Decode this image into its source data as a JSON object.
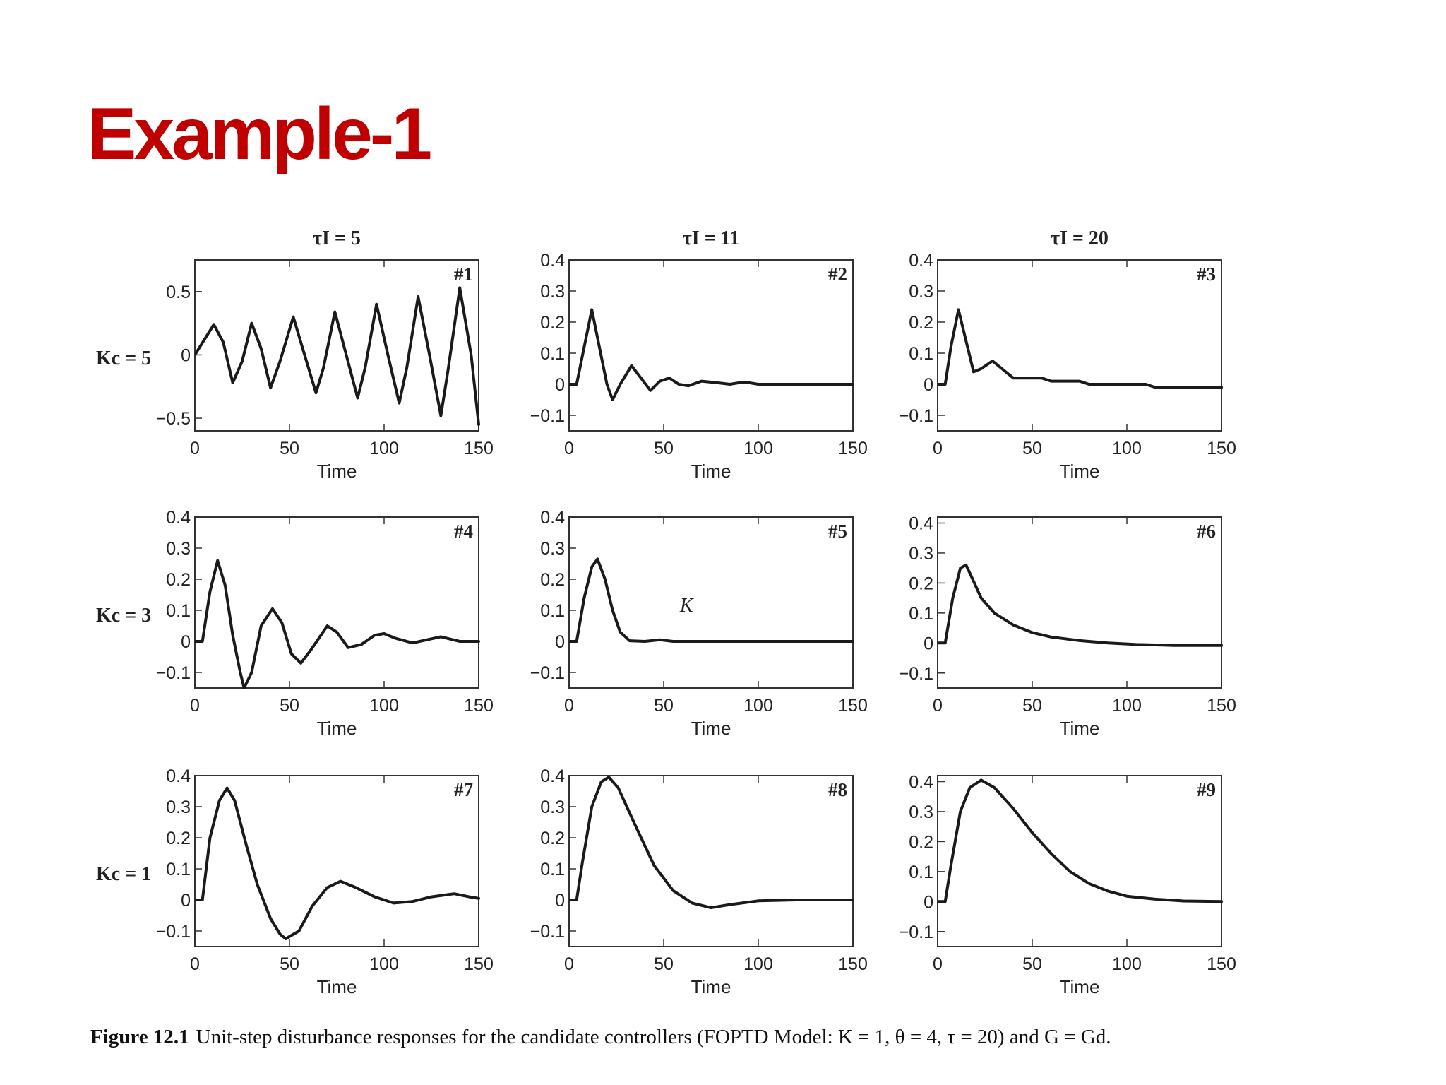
{
  "title": "Example-1",
  "colors": {
    "title": "#c00000",
    "curve": "#1a1a1a",
    "frame": "#333333"
  },
  "caption": {
    "label": "Figure 12.1",
    "text": "Unit-step disturbance responses for the candidate controllers (FOPTD Model: K = 1, θ = 4, τ = 20) and G = Gd."
  },
  "column_headers": [
    "τI = 5",
    "τI = 11",
    "τI = 20"
  ],
  "row_headers": [
    "Kc = 5",
    "Kc = 3",
    "Kc = 1"
  ],
  "chart_data": [
    {
      "type": "line",
      "id": "#1",
      "xlabel": "Time",
      "xlim": [
        0,
        150
      ],
      "ylim": [
        -0.6,
        0.75
      ],
      "xticks": [
        0,
        50,
        100,
        150
      ],
      "yticks": [
        -0.5,
        0,
        0.5
      ],
      "ytick_labels": [
        "−0.5",
        "0",
        "0.5"
      ],
      "points": [
        [
          0,
          0
        ],
        [
          5,
          0.12
        ],
        [
          10,
          0.24
        ],
        [
          15,
          0.1
        ],
        [
          20,
          -0.22
        ],
        [
          25,
          -0.05
        ],
        [
          30,
          0.25
        ],
        [
          35,
          0.05
        ],
        [
          40,
          -0.26
        ],
        [
          45,
          -0.05
        ],
        [
          52,
          0.3
        ],
        [
          58,
          0.0
        ],
        [
          64,
          -0.3
        ],
        [
          68,
          -0.1
        ],
        [
          74,
          0.34
        ],
        [
          80,
          0.0
        ],
        [
          86,
          -0.34
        ],
        [
          90,
          -0.1
        ],
        [
          96,
          0.4
        ],
        [
          102,
          0.0
        ],
        [
          108,
          -0.38
        ],
        [
          112,
          -0.1
        ],
        [
          118,
          0.46
        ],
        [
          124,
          0.0
        ],
        [
          130,
          -0.48
        ],
        [
          134,
          -0.1
        ],
        [
          140,
          0.53
        ],
        [
          146,
          0.0
        ],
        [
          150,
          -0.55
        ]
      ]
    },
    {
      "type": "line",
      "id": "#2",
      "xlabel": "Time",
      "xlim": [
        0,
        150
      ],
      "ylim": [
        -0.15,
        0.4
      ],
      "xticks": [
        0,
        50,
        100,
        150
      ],
      "yticks": [
        -0.1,
        0,
        0.1,
        0.2,
        0.3,
        0.4
      ],
      "ytick_labels": [
        "−0.1",
        "0",
        "0.1",
        "0.2",
        "0.3",
        "0.4"
      ],
      "points": [
        [
          0,
          0
        ],
        [
          4,
          0
        ],
        [
          8,
          0.12
        ],
        [
          12,
          0.24
        ],
        [
          16,
          0.12
        ],
        [
          20,
          0
        ],
        [
          23,
          -0.05
        ],
        [
          27,
          0
        ],
        [
          33,
          0.06
        ],
        [
          38,
          0.02
        ],
        [
          43,
          -0.02
        ],
        [
          48,
          0.01
        ],
        [
          53,
          0.02
        ],
        [
          58,
          0.0
        ],
        [
          63,
          -0.005
        ],
        [
          70,
          0.01
        ],
        [
          78,
          0.005
        ],
        [
          85,
          0
        ],
        [
          90,
          0.005
        ],
        [
          95,
          0.005
        ],
        [
          100,
          0
        ],
        [
          150,
          0
        ]
      ]
    },
    {
      "type": "line",
      "id": "#3",
      "xlabel": "Time",
      "xlim": [
        0,
        150
      ],
      "ylim": [
        -0.15,
        0.4
      ],
      "xticks": [
        0,
        50,
        100,
        150
      ],
      "yticks": [
        -0.1,
        0,
        0.1,
        0.2,
        0.3,
        0.4
      ],
      "ytick_labels": [
        "−0.1",
        "0",
        "0.1",
        "0.2",
        "0.3",
        "0.4"
      ],
      "points": [
        [
          0,
          0
        ],
        [
          4,
          0
        ],
        [
          7,
          0.12
        ],
        [
          11,
          0.24
        ],
        [
          15,
          0.14
        ],
        [
          19,
          0.04
        ],
        [
          23,
          0.05
        ],
        [
          29,
          0.075
        ],
        [
          34,
          0.05
        ],
        [
          40,
          0.02
        ],
        [
          50,
          0.02
        ],
        [
          55,
          0.02
        ],
        [
          60,
          0.01
        ],
        [
          70,
          0.01
        ],
        [
          75,
          0.01
        ],
        [
          80,
          0
        ],
        [
          110,
          0
        ],
        [
          115,
          -0.01
        ],
        [
          150,
          -0.01
        ]
      ]
    },
    {
      "type": "line",
      "id": "#4",
      "xlabel": "Time",
      "xlim": [
        0,
        150
      ],
      "ylim": [
        -0.15,
        0.4
      ],
      "xticks": [
        0,
        50,
        100,
        150
      ],
      "yticks": [
        -0.1,
        0,
        0.1,
        0.2,
        0.3,
        0.4
      ],
      "ytick_labels": [
        "−0.1",
        "0",
        "0.1",
        "0.2",
        "0.3",
        "0.4"
      ],
      "points": [
        [
          0,
          0
        ],
        [
          4,
          0
        ],
        [
          8,
          0.16
        ],
        [
          12,
          0.26
        ],
        [
          16,
          0.18
        ],
        [
          20,
          0.02
        ],
        [
          24,
          -0.1
        ],
        [
          26,
          -0.15
        ],
        [
          30,
          -0.1
        ],
        [
          35,
          0.05
        ],
        [
          41,
          0.105
        ],
        [
          46,
          0.06
        ],
        [
          51,
          -0.04
        ],
        [
          56,
          -0.07
        ],
        [
          61,
          -0.03
        ],
        [
          70,
          0.05
        ],
        [
          75,
          0.03
        ],
        [
          81,
          -0.02
        ],
        [
          88,
          -0.01
        ],
        [
          95,
          0.02
        ],
        [
          100,
          0.025
        ],
        [
          106,
          0.01
        ],
        [
          115,
          -0.005
        ],
        [
          130,
          0.015
        ],
        [
          140,
          0.0
        ],
        [
          150,
          0.0
        ]
      ]
    },
    {
      "type": "line",
      "id": "#5",
      "xlabel": "Time",
      "xlim": [
        0,
        150
      ],
      "ylim": [
        -0.15,
        0.4
      ],
      "xticks": [
        0,
        50,
        100,
        150
      ],
      "yticks": [
        -0.1,
        0,
        0.1,
        0.2,
        0.3,
        0.4
      ],
      "ytick_labels": [
        "−0.1",
        "0",
        "0.1",
        "0.2",
        "0.3",
        "0.4"
      ],
      "annotation": {
        "text": "K",
        "x": 62,
        "y": 0.095
      },
      "points": [
        [
          0,
          0
        ],
        [
          4,
          0
        ],
        [
          8,
          0.14
        ],
        [
          12,
          0.24
        ],
        [
          15,
          0.265
        ],
        [
          19,
          0.2
        ],
        [
          23,
          0.1
        ],
        [
          27,
          0.03
        ],
        [
          32,
          0.002
        ],
        [
          40,
          0.0
        ],
        [
          48,
          0.005
        ],
        [
          55,
          0.0
        ],
        [
          150,
          0.0
        ]
      ]
    },
    {
      "type": "line",
      "id": "#6",
      "xlabel": "Time",
      "xlim": [
        0,
        150
      ],
      "ylim": [
        -0.15,
        0.42
      ],
      "xticks": [
        0,
        50,
        100,
        150
      ],
      "yticks": [
        -0.1,
        0,
        0.1,
        0.2,
        0.3,
        0.4
      ],
      "ytick_labels": [
        "−0.1",
        "0",
        "0.1",
        "0.2",
        "0.3",
        "0.4"
      ],
      "points": [
        [
          0,
          0
        ],
        [
          4,
          0
        ],
        [
          8,
          0.15
        ],
        [
          12,
          0.25
        ],
        [
          15,
          0.26
        ],
        [
          18,
          0.22
        ],
        [
          23,
          0.15
        ],
        [
          30,
          0.1
        ],
        [
          40,
          0.06
        ],
        [
          50,
          0.035
        ],
        [
          60,
          0.02
        ],
        [
          75,
          0.008
        ],
        [
          90,
          0.0
        ],
        [
          105,
          -0.005
        ],
        [
          125,
          -0.008
        ],
        [
          150,
          -0.008
        ]
      ]
    },
    {
      "type": "line",
      "id": "#7",
      "xlabel": "Time",
      "xlim": [
        0,
        150
      ],
      "ylim": [
        -0.15,
        0.4
      ],
      "xticks": [
        0,
        50,
        100,
        150
      ],
      "yticks": [
        -0.1,
        0,
        0.1,
        0.2,
        0.3,
        0.4
      ],
      "ytick_labels": [
        "−0.1",
        "0",
        "0.1",
        "0.2",
        "0.3",
        "0.4"
      ],
      "points": [
        [
          0,
          0
        ],
        [
          4,
          0
        ],
        [
          8,
          0.2
        ],
        [
          13,
          0.32
        ],
        [
          17,
          0.36
        ],
        [
          21,
          0.32
        ],
        [
          27,
          0.18
        ],
        [
          33,
          0.05
        ],
        [
          40,
          -0.06
        ],
        [
          45,
          -0.11
        ],
        [
          48,
          -0.125
        ],
        [
          55,
          -0.1
        ],
        [
          62,
          -0.02
        ],
        [
          70,
          0.04
        ],
        [
          77,
          0.06
        ],
        [
          85,
          0.04
        ],
        [
          95,
          0.01
        ],
        [
          105,
          -0.01
        ],
        [
          115,
          -0.005
        ],
        [
          125,
          0.01
        ],
        [
          137,
          0.02
        ],
        [
          145,
          0.01
        ],
        [
          150,
          0.005
        ]
      ]
    },
    {
      "type": "line",
      "id": "#8",
      "xlabel": "Time",
      "xlim": [
        0,
        150
      ],
      "ylim": [
        -0.15,
        0.4
      ],
      "xticks": [
        0,
        50,
        100,
        150
      ],
      "yticks": [
        -0.1,
        0,
        0.1,
        0.2,
        0.3,
        0.4
      ],
      "ytick_labels": [
        "−0.1",
        "0",
        "0.1",
        "0.2",
        "0.3",
        "0.4"
      ],
      "points": [
        [
          0,
          0
        ],
        [
          4,
          0
        ],
        [
          7,
          0.12
        ],
        [
          12,
          0.3
        ],
        [
          17,
          0.38
        ],
        [
          21,
          0.395
        ],
        [
          26,
          0.36
        ],
        [
          35,
          0.24
        ],
        [
          45,
          0.11
        ],
        [
          55,
          0.03
        ],
        [
          65,
          -0.01
        ],
        [
          75,
          -0.025
        ],
        [
          85,
          -0.015
        ],
        [
          100,
          -0.003
        ],
        [
          120,
          0.0
        ],
        [
          150,
          0.0
        ]
      ]
    },
    {
      "type": "line",
      "id": "#9",
      "xlabel": "Time",
      "xlim": [
        0,
        150
      ],
      "ylim": [
        -0.15,
        0.42
      ],
      "xticks": [
        0,
        50,
        100,
        150
      ],
      "yticks": [
        -0.1,
        0,
        0.1,
        0.2,
        0.3,
        0.4
      ],
      "ytick_labels": [
        "−0.1",
        "0",
        "0.1",
        "0.2",
        "0.3",
        "0.4"
      ],
      "points": [
        [
          0,
          0
        ],
        [
          4,
          0
        ],
        [
          7,
          0.12
        ],
        [
          12,
          0.3
        ],
        [
          17,
          0.38
        ],
        [
          23,
          0.405
        ],
        [
          30,
          0.38
        ],
        [
          40,
          0.31
        ],
        [
          50,
          0.23
        ],
        [
          60,
          0.16
        ],
        [
          70,
          0.1
        ],
        [
          80,
          0.06
        ],
        [
          90,
          0.035
        ],
        [
          100,
          0.018
        ],
        [
          115,
          0.008
        ],
        [
          130,
          0.002
        ],
        [
          150,
          0.0
        ]
      ]
    }
  ]
}
